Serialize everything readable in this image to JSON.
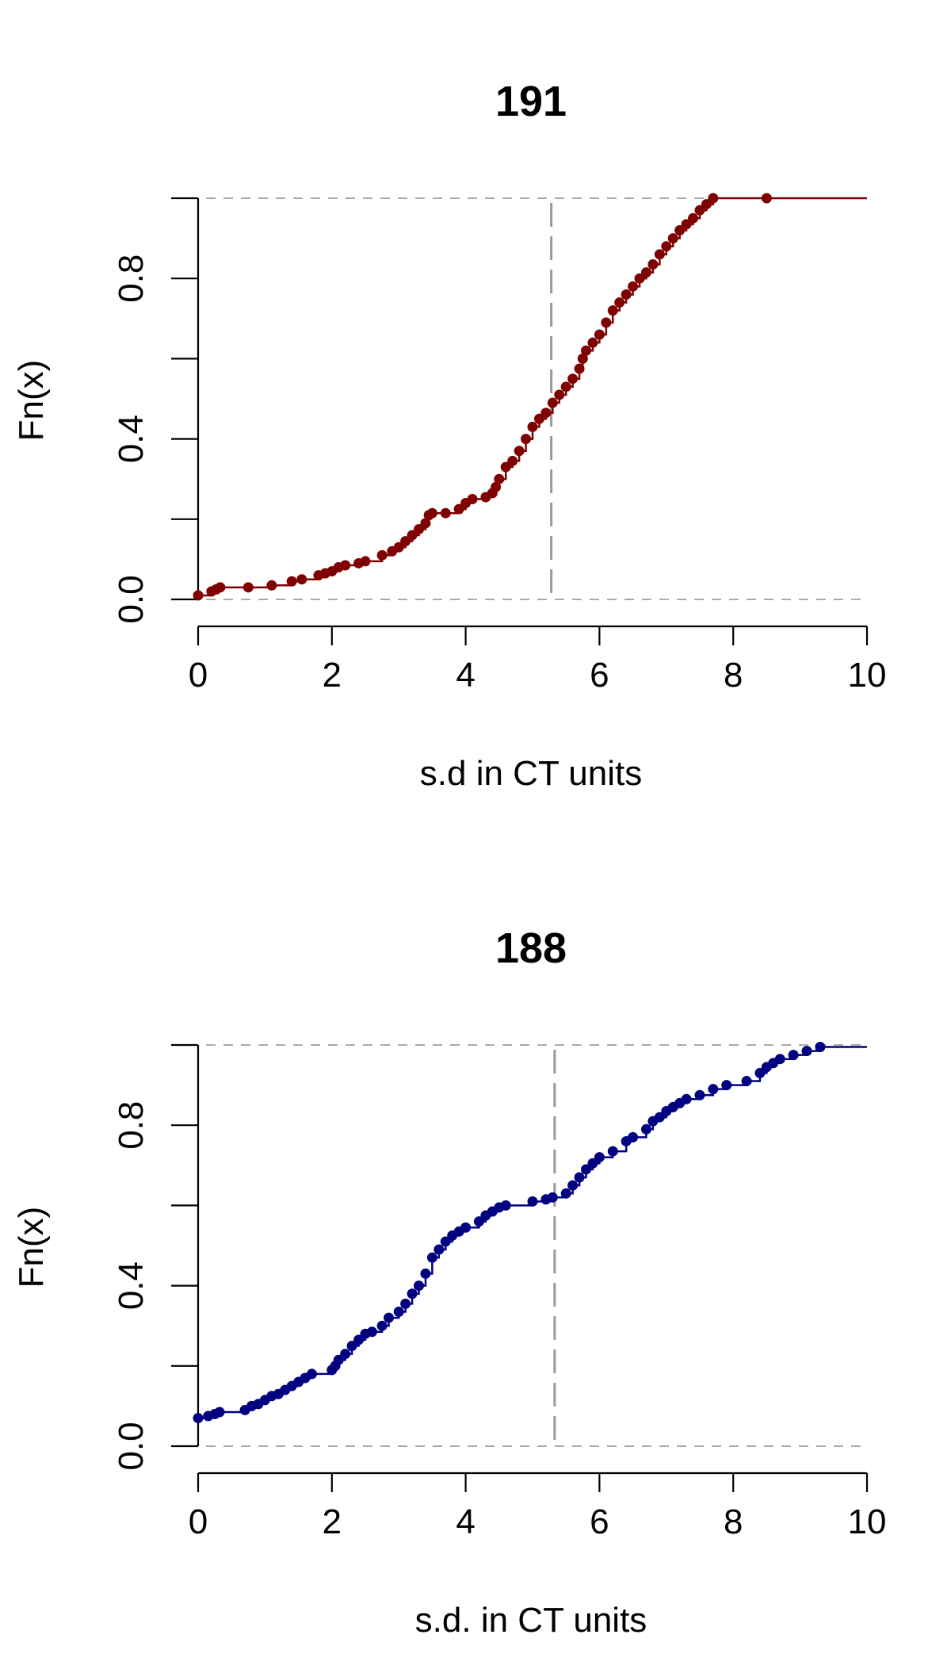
{
  "chart_data": [
    {
      "type": "scatter",
      "subtype": "ecdf",
      "title": "191",
      "xlabel": "s.d in CT units",
      "ylabel": "Fn(x)",
      "xlim": [
        0,
        10
      ],
      "ylim": [
        0,
        1
      ],
      "x_ticks": [
        0,
        2,
        4,
        6,
        8,
        10
      ],
      "x_tick_labels": [
        "0",
        "2",
        "4",
        "6",
        "8",
        "10"
      ],
      "y_ticks": [
        0,
        0.2,
        0.4,
        0.6,
        0.8,
        1.0
      ],
      "y_tick_labels": [
        "0.0",
        "",
        "0.4",
        "",
        "0.8",
        ""
      ],
      "reference_line_x": 5.28,
      "horizontal_reference_lines": [
        0,
        1
      ],
      "color": "#7f0000",
      "series": [
        {
          "x": [
            0.0,
            0.2,
            0.27,
            0.33,
            0.75,
            1.1,
            1.4,
            1.55,
            1.8,
            1.9,
            2.0,
            2.1,
            2.2,
            2.4,
            2.5,
            2.75,
            2.9,
            3.0,
            3.1,
            3.2,
            3.3,
            3.4,
            3.45,
            3.5,
            3.7,
            3.9,
            4.0,
            4.1,
            4.3,
            4.4,
            4.45,
            4.5,
            4.6,
            4.7,
            4.8,
            4.9,
            5.0,
            5.1,
            5.2,
            5.3,
            5.4,
            5.5,
            5.6,
            5.7,
            5.75,
            5.8,
            5.9,
            6.0,
            6.1,
            6.2,
            6.3,
            6.4,
            6.5,
            6.6,
            6.7,
            6.8,
            6.9,
            7.0,
            7.1,
            7.2,
            7.3,
            7.4,
            7.5,
            7.6,
            7.7,
            8.5
          ],
          "y": [
            0.01,
            0.02,
            0.025,
            0.03,
            0.03,
            0.035,
            0.045,
            0.05,
            0.06,
            0.065,
            0.07,
            0.08,
            0.085,
            0.09,
            0.095,
            0.11,
            0.12,
            0.13,
            0.145,
            0.16,
            0.175,
            0.19,
            0.21,
            0.215,
            0.215,
            0.225,
            0.24,
            0.25,
            0.255,
            0.265,
            0.28,
            0.3,
            0.33,
            0.345,
            0.37,
            0.4,
            0.43,
            0.45,
            0.465,
            0.49,
            0.51,
            0.53,
            0.55,
            0.575,
            0.6,
            0.62,
            0.64,
            0.66,
            0.69,
            0.72,
            0.74,
            0.76,
            0.78,
            0.8,
            0.815,
            0.835,
            0.86,
            0.88,
            0.9,
            0.92,
            0.935,
            0.95,
            0.97,
            0.985,
            1.0,
            1.0
          ]
        }
      ]
    },
    {
      "type": "scatter",
      "subtype": "ecdf",
      "title": "188",
      "xlabel": "s.d. in CT units",
      "ylabel": "Fn(x)",
      "xlim": [
        0,
        10
      ],
      "ylim": [
        0,
        1
      ],
      "x_ticks": [
        0,
        2,
        4,
        6,
        8,
        10
      ],
      "x_tick_labels": [
        "0",
        "2",
        "4",
        "6",
        "8",
        "10"
      ],
      "y_ticks": [
        0,
        0.2,
        0.4,
        0.6,
        0.8,
        1.0
      ],
      "y_tick_labels": [
        "0.0",
        "",
        "0.4",
        "",
        "0.8",
        ""
      ],
      "reference_line_x": 5.33,
      "horizontal_reference_lines": [
        0,
        1
      ],
      "color": "#000080",
      "series": [
        {
          "x": [
            0.0,
            0.15,
            0.25,
            0.32,
            0.7,
            0.8,
            0.9,
            1.0,
            1.1,
            1.2,
            1.3,
            1.4,
            1.5,
            1.6,
            1.7,
            2.0,
            2.05,
            2.1,
            2.2,
            2.3,
            2.4,
            2.5,
            2.6,
            2.75,
            2.85,
            3.0,
            3.1,
            3.2,
            3.3,
            3.4,
            3.5,
            3.6,
            3.7,
            3.8,
            3.9,
            4.0,
            4.2,
            4.3,
            4.4,
            4.5,
            4.6,
            5.0,
            5.2,
            5.3,
            5.5,
            5.6,
            5.7,
            5.8,
            5.9,
            6.0,
            6.2,
            6.4,
            6.5,
            6.7,
            6.8,
            6.9,
            7.0,
            7.1,
            7.2,
            7.3,
            7.5,
            7.7,
            7.9,
            8.2,
            8.4,
            8.5,
            8.6,
            8.7,
            8.9,
            9.1,
            9.3
          ],
          "y": [
            0.07,
            0.075,
            0.08,
            0.085,
            0.09,
            0.1,
            0.105,
            0.115,
            0.125,
            0.13,
            0.14,
            0.15,
            0.16,
            0.17,
            0.18,
            0.19,
            0.2,
            0.215,
            0.23,
            0.25,
            0.265,
            0.28,
            0.285,
            0.3,
            0.32,
            0.335,
            0.355,
            0.38,
            0.4,
            0.43,
            0.47,
            0.49,
            0.51,
            0.525,
            0.535,
            0.545,
            0.56,
            0.575,
            0.585,
            0.595,
            0.6,
            0.61,
            0.615,
            0.62,
            0.63,
            0.65,
            0.67,
            0.69,
            0.705,
            0.72,
            0.735,
            0.76,
            0.77,
            0.79,
            0.81,
            0.82,
            0.835,
            0.845,
            0.855,
            0.865,
            0.875,
            0.89,
            0.9,
            0.91,
            0.93,
            0.945,
            0.955,
            0.965,
            0.975,
            0.985,
            0.995
          ]
        }
      ]
    }
  ]
}
